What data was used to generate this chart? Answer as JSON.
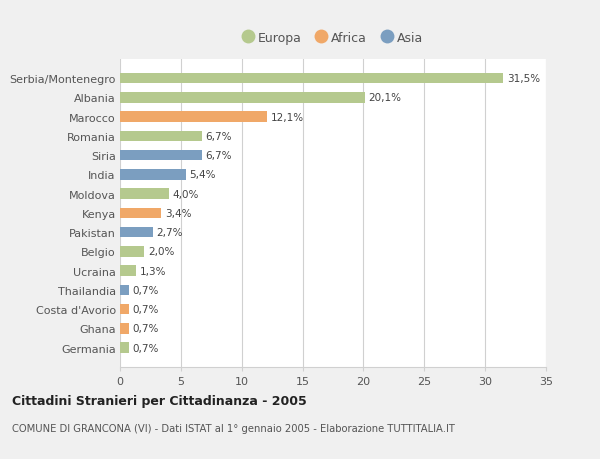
{
  "categories": [
    "Serbia/Montenegro",
    "Albania",
    "Marocco",
    "Romania",
    "Siria",
    "India",
    "Moldova",
    "Kenya",
    "Pakistan",
    "Belgio",
    "Ucraina",
    "Thailandia",
    "Costa d'Avorio",
    "Ghana",
    "Germania"
  ],
  "values": [
    31.5,
    20.1,
    12.1,
    6.7,
    6.7,
    5.4,
    4.0,
    3.4,
    2.7,
    2.0,
    1.3,
    0.7,
    0.7,
    0.7,
    0.7
  ],
  "labels": [
    "31,5%",
    "20,1%",
    "12,1%",
    "6,7%",
    "6,7%",
    "5,4%",
    "4,0%",
    "3,4%",
    "2,7%",
    "2,0%",
    "1,3%",
    "0,7%",
    "0,7%",
    "0,7%",
    "0,7%"
  ],
  "continents": [
    "Europa",
    "Europa",
    "Africa",
    "Europa",
    "Asia",
    "Asia",
    "Europa",
    "Africa",
    "Asia",
    "Europa",
    "Europa",
    "Asia",
    "Africa",
    "Africa",
    "Europa"
  ],
  "colors": {
    "Europa": "#b5c98e",
    "Africa": "#f0a868",
    "Asia": "#7b9ec0"
  },
  "legend_entries": [
    "Europa",
    "Africa",
    "Asia"
  ],
  "bg_color": "#f0f0f0",
  "plot_bg_color": "#ffffff",
  "grid_color": "#d0d0d0",
  "title": "Cittadini Stranieri per Cittadinanza - 2005",
  "subtitle": "COMUNE DI GRANCONA (VI) - Dati ISTAT al 1° gennaio 2005 - Elaborazione TUTTITALIA.IT",
  "xlim": [
    0,
    35
  ],
  "xticks": [
    0,
    5,
    10,
    15,
    20,
    25,
    30,
    35
  ]
}
